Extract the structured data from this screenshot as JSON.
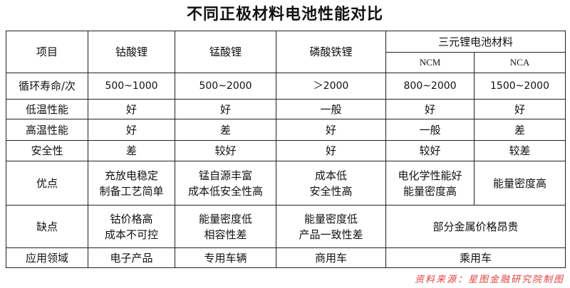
{
  "title": "不同正极材料电池性能对比",
  "header": {
    "item": "项目",
    "cols": [
      "钴酸锂",
      "锰酸锂",
      "磷酸铁锂"
    ],
    "ternary": "三元锂电池材料",
    "sub": [
      "NCM",
      "NCA"
    ]
  },
  "rows": [
    {
      "label": "循环寿命/次",
      "cells": [
        "500~1000",
        "500~2000",
        "＞2000",
        "800~2000",
        "1500~2000"
      ]
    },
    {
      "label": "低温性能",
      "cells": [
        "好",
        "好",
        "一般",
        "好",
        "好"
      ]
    },
    {
      "label": "高温性能",
      "cells": [
        "好",
        "差",
        "好",
        "一般",
        "差"
      ]
    },
    {
      "label": "安全性",
      "cells": [
        "差",
        "较好",
        "好",
        "较好",
        "较差"
      ]
    },
    {
      "label": "优点",
      "cells": [
        [
          "充放电稳定",
          "制备工艺简单"
        ],
        [
          "锰自源丰富",
          "成本低安全性高"
        ],
        [
          "成本低",
          "安全性高"
        ],
        [
          "电化学性能好",
          "能量密度高"
        ],
        [
          "能量密度高"
        ]
      ]
    },
    {
      "label": "缺点",
      "cells": [
        [
          "钴价格高",
          "成本不可控"
        ],
        [
          "能量密度低",
          "相容性差"
        ],
        [
          "能量密度低",
          "产品一致性差"
        ],
        [
          "部分金属价格昂贵"
        ]
      ]
    },
    {
      "label": "应用领域",
      "cells": [
        "电子产品",
        "专用车辆",
        "商用车",
        "乘用车"
      ]
    }
  ],
  "source": "资料来源：星图金融研究院制图"
}
